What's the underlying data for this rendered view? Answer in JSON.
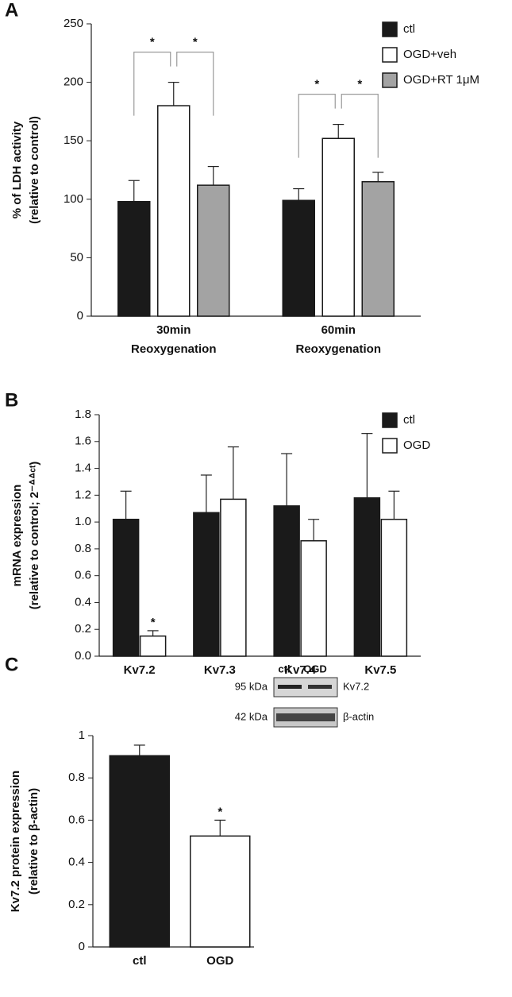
{
  "chart_data": [
    {
      "type": "bar",
      "panel": "A",
      "ylabel": [
        "% of LDH activity",
        "(relative to control)"
      ],
      "categories": [
        [
          "30min",
          "Reoxygenation"
        ],
        [
          "60min",
          "Reoxygenation"
        ]
      ],
      "series": [
        {
          "name": "ctl",
          "color": "#1a1a1a",
          "values": [
            98,
            99
          ],
          "errors": [
            18,
            10
          ],
          "significance": [
            "*",
            "*"
          ]
        },
        {
          "name": "OGD+veh",
          "color": "#ffffff",
          "values": [
            180,
            152
          ],
          "errors": [
            20,
            12
          ]
        },
        {
          "name": "OGD+RT 1μM",
          "color": "#a3a3a3",
          "values": [
            112,
            115
          ],
          "errors": [
            16,
            8
          ],
          "significance": [
            "*",
            "*"
          ]
        }
      ],
      "ylim": [
        0,
        250
      ],
      "yticks": [
        0,
        50,
        100,
        150,
        200,
        250
      ],
      "legend": "upper right"
    },
    {
      "type": "bar",
      "panel": "B",
      "ylabel": [
        "mRNA expression",
        "(relative to control; 2⁻ᐞᐞᶜᵗ)"
      ],
      "categories": [
        "Kv7.2",
        "Kv7.3",
        "Kv7.4",
        "Kv7.5"
      ],
      "series": [
        {
          "name": "ctl",
          "color": "#1a1a1a",
          "values": [
            1.02,
            1.07,
            1.12,
            1.18
          ],
          "errors": [
            0.21,
            0.28,
            0.39,
            0.48
          ]
        },
        {
          "name": "OGD",
          "color": "#ffffff",
          "values": [
            0.15,
            1.17,
            0.86,
            1.02
          ],
          "errors": [
            0.04,
            0.39,
            0.16,
            0.21
          ],
          "significance": [
            "*",
            null,
            null,
            null
          ]
        }
      ],
      "ylim": [
        0,
        1.8
      ],
      "yticks": [
        {
          "value": 0,
          "label": "0.0"
        },
        0.2,
        0.4,
        0.6,
        0.8,
        {
          "value": 1,
          "label": "1.0"
        },
        1.2,
        1.4,
        1.6,
        1.8
      ],
      "legend": "upper right"
    },
    {
      "type": "bar",
      "panel": "C",
      "ylabel": [
        "Kv7.2 protein expression",
        "(relative to β-actin)"
      ],
      "categories": [
        "ctl",
        "OGD"
      ],
      "values": [
        0.905,
        0.525
      ],
      "errors": [
        0.05,
        0.075
      ],
      "colors": [
        "#1a1a1a",
        "#ffffff"
      ],
      "significance": [
        null,
        "*"
      ],
      "ylim": [
        0,
        1
      ],
      "yticks": [
        0,
        0.2,
        0.4,
        0.6,
        0.8,
        1
      ],
      "inset": {
        "lanes": [
          "ctl",
          "OGD"
        ],
        "rows": [
          {
            "size": "95 kDa",
            "protein": "Kv7.2"
          },
          {
            "size": "42 kDa",
            "protein": "β-actin"
          }
        ]
      }
    }
  ]
}
